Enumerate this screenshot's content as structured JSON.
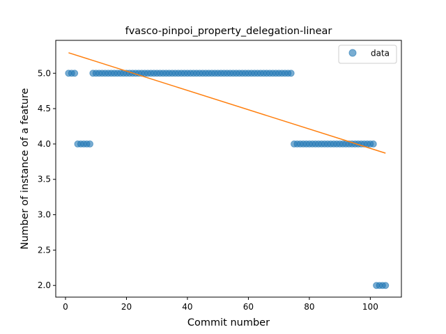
{
  "chart_data": {
    "type": "scatter",
    "title": "fvasco-pinpoi_property_delegation-linear",
    "xlabel": "Commit number",
    "ylabel": "Number of instance of a feature",
    "xlim": [
      -3.2,
      110.2
    ],
    "ylim": [
      1.835,
      5.465
    ],
    "xticks": [
      0,
      20,
      40,
      60,
      80,
      100
    ],
    "xtick_labels": [
      "0",
      "20",
      "40",
      "60",
      "80",
      "100"
    ],
    "yticks": [
      2.0,
      2.5,
      3.0,
      3.5,
      4.0,
      4.5,
      5.0
    ],
    "ytick_labels": [
      "2.0",
      "2.5",
      "3.0",
      "3.5",
      "4.0",
      "4.5",
      "5.0"
    ],
    "grid": false,
    "legend_position": "top-right",
    "series": [
      {
        "name": "data",
        "kind": "scatter",
        "color": "#1f77b4",
        "x": [
          1,
          2,
          3,
          4,
          5,
          6,
          7,
          8,
          9,
          10,
          11,
          12,
          13,
          14,
          15,
          16,
          17,
          18,
          19,
          20,
          21,
          22,
          23,
          24,
          25,
          26,
          27,
          28,
          29,
          30,
          31,
          32,
          33,
          34,
          35,
          36,
          37,
          38,
          39,
          40,
          41,
          42,
          43,
          44,
          45,
          46,
          47,
          48,
          49,
          50,
          51,
          52,
          53,
          54,
          55,
          56,
          57,
          58,
          59,
          60,
          61,
          62,
          63,
          64,
          65,
          66,
          67,
          68,
          69,
          70,
          71,
          72,
          73,
          74,
          75,
          76,
          77,
          78,
          79,
          80,
          81,
          82,
          83,
          84,
          85,
          86,
          87,
          88,
          89,
          90,
          91,
          92,
          93,
          94,
          95,
          96,
          97,
          98,
          99,
          100,
          101,
          102,
          103,
          104,
          105
        ],
        "y": [
          5,
          5,
          5,
          4,
          4,
          4,
          4,
          4,
          5,
          5,
          5,
          5,
          5,
          5,
          5,
          5,
          5,
          5,
          5,
          5,
          5,
          5,
          5,
          5,
          5,
          5,
          5,
          5,
          5,
          5,
          5,
          5,
          5,
          5,
          5,
          5,
          5,
          5,
          5,
          5,
          5,
          5,
          5,
          5,
          5,
          5,
          5,
          5,
          5,
          5,
          5,
          5,
          5,
          5,
          5,
          5,
          5,
          5,
          5,
          5,
          5,
          5,
          5,
          5,
          5,
          5,
          5,
          5,
          5,
          5,
          5,
          5,
          5,
          5,
          4,
          4,
          4,
          4,
          4,
          4,
          4,
          4,
          4,
          4,
          4,
          4,
          4,
          4,
          4,
          4,
          4,
          4,
          4,
          4,
          4,
          4,
          4,
          4,
          4,
          4,
          4,
          2,
          2,
          2,
          2
        ]
      },
      {
        "kind": "line",
        "color": "#ff7f0e",
        "x": [
          1,
          105
        ],
        "y": [
          5.29,
          3.87
        ]
      }
    ]
  }
}
